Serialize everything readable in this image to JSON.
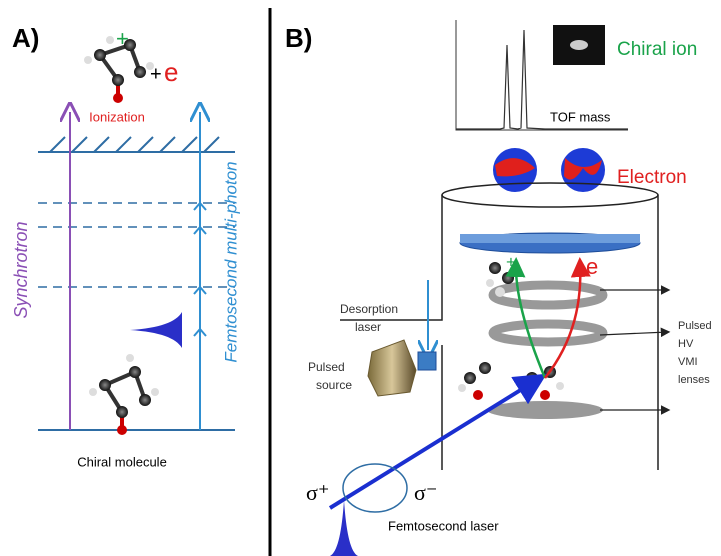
{
  "panel_a": {
    "label": "A)",
    "ion_charge": "+",
    "plus": "+",
    "electron": "e",
    "ionization": "Ionization",
    "synchrotron": "Synchrotron",
    "femtosecond": "Femtosecond multi-photon",
    "molecule": "Chiral molecule"
  },
  "panel_b": {
    "label": "B)",
    "chiral_ion": "Chiral ion",
    "tof": "TOF mass",
    "electron": "Electron",
    "desorption": [
      "Desorption",
      "laser"
    ],
    "source": [
      "Pulsed",
      "source"
    ],
    "ion_sign": "+",
    "e_label": "e",
    "lenses": [
      "Pulsed",
      "HV",
      "VMI",
      "lenses"
    ],
    "sigma_plus": "σ⁺",
    "sigma_minus": "σ⁻",
    "laser": "Femtosecond laser"
  }
}
